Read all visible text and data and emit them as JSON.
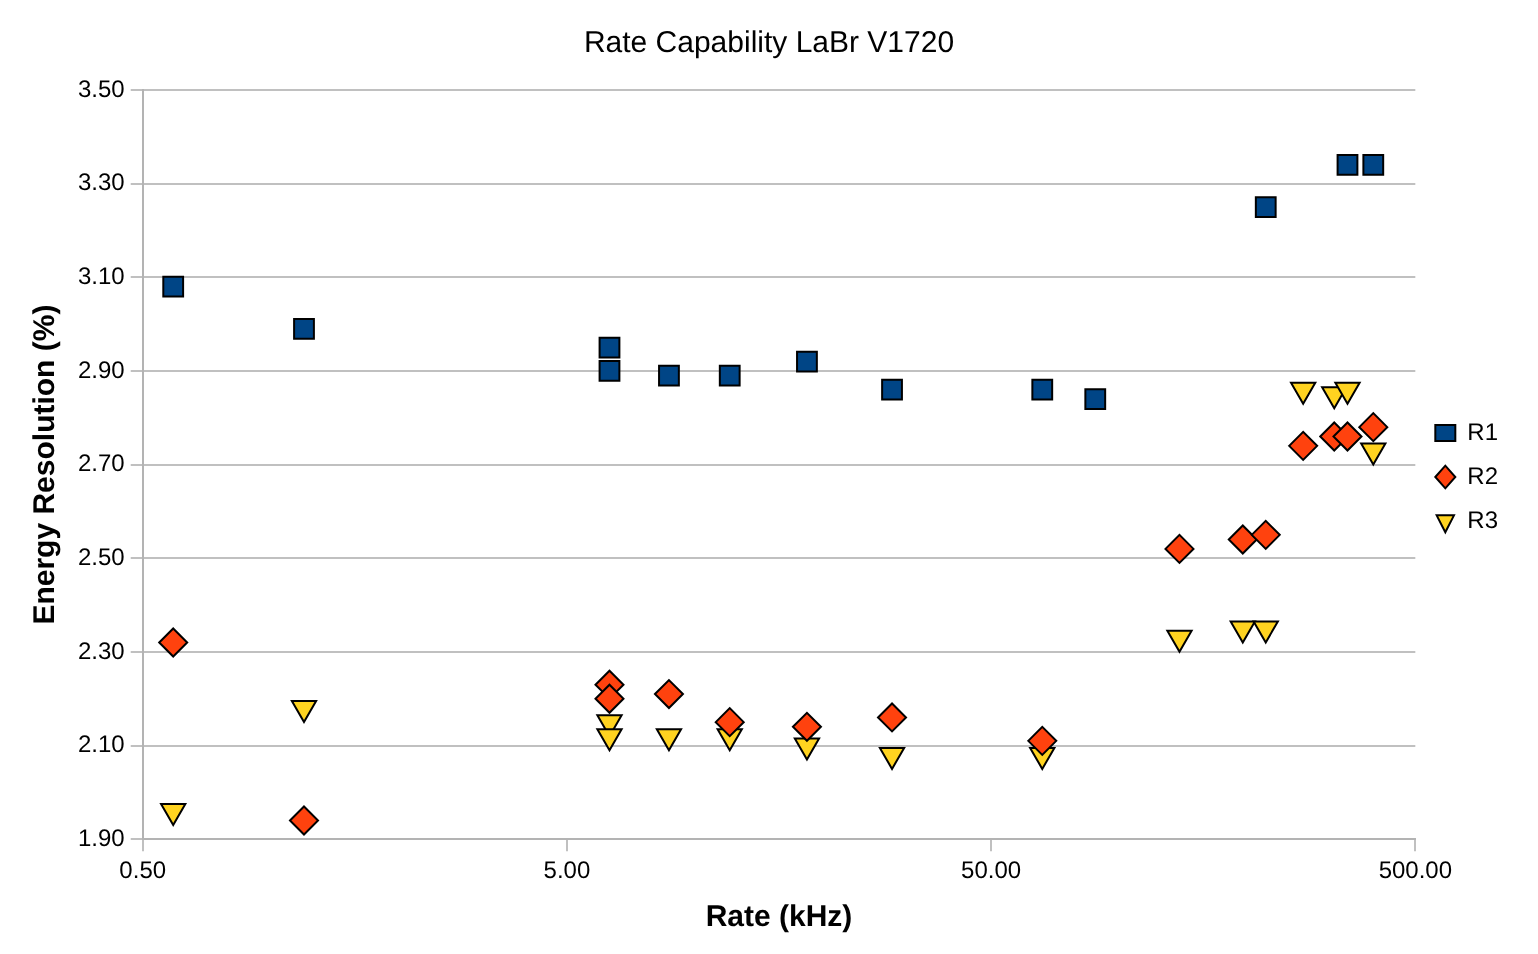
{
  "chart_data": {
    "type": "scatter",
    "title": "Rate Capability LaBr V1720",
    "xlabel": "Rate (kHz)",
    "ylabel": "Energy Resolution (%)",
    "log": "x",
    "grid": "y",
    "legend": "right",
    "xlim": [
      0.5,
      500
    ],
    "xticks": [
      {
        "value": 0.5,
        "label": "0.50"
      },
      {
        "value": 5,
        "label": "5.00"
      },
      {
        "value": 50,
        "label": "50.00"
      },
      {
        "value": 500,
        "label": "500.00"
      }
    ],
    "ylim": [
      1.9,
      3.5
    ],
    "yticks": [
      {
        "value": 1.9,
        "label": "1.90"
      },
      {
        "value": 2.1,
        "label": "2.10"
      },
      {
        "value": 2.3,
        "label": "2.30"
      },
      {
        "value": 2.5,
        "label": "2.50"
      },
      {
        "value": 2.7,
        "label": "2.70"
      },
      {
        "value": 2.9,
        "label": "2.90"
      },
      {
        "value": 3.1,
        "label": "3.10"
      },
      {
        "value": 3.3,
        "label": "3.30"
      },
      {
        "value": 3.5,
        "label": "3.50"
      }
    ],
    "series": [
      {
        "name": "R1",
        "color": "#004586",
        "marker": "square",
        "x": [
          0.59,
          1.2,
          6.3,
          6.3,
          8.7,
          12.1,
          18.4,
          29.2,
          66,
          88,
          222,
          346,
          398
        ],
        "values": [
          3.08,
          2.99,
          2.95,
          2.9,
          2.89,
          2.89,
          2.92,
          2.86,
          2.86,
          2.84,
          3.25,
          3.34,
          3.34
        ]
      },
      {
        "name": "R2",
        "color": "#ff420e",
        "marker": "diamond",
        "x": [
          0.59,
          1.2,
          6.3,
          6.3,
          8.7,
          12.1,
          18.4,
          29.2,
          66,
          139,
          196,
          222,
          272,
          322,
          346,
          398
        ],
        "values": [
          2.32,
          1.94,
          2.23,
          2.2,
          2.21,
          2.15,
          2.14,
          2.16,
          2.11,
          2.52,
          2.54,
          2.55,
          2.74,
          2.76,
          2.76,
          2.78
        ]
      },
      {
        "name": "R3",
        "color": "#ffd320",
        "marker": "triangle",
        "x": [
          0.59,
          1.2,
          6.3,
          6.3,
          8.7,
          12.1,
          18.4,
          29.2,
          66,
          139,
          196,
          222,
          272,
          322,
          346,
          398
        ],
        "values": [
          1.96,
          2.18,
          2.15,
          2.12,
          2.12,
          2.12,
          2.1,
          2.08,
          2.08,
          2.33,
          2.35,
          2.35,
          2.86,
          2.85,
          2.86,
          2.73
        ]
      }
    ]
  }
}
